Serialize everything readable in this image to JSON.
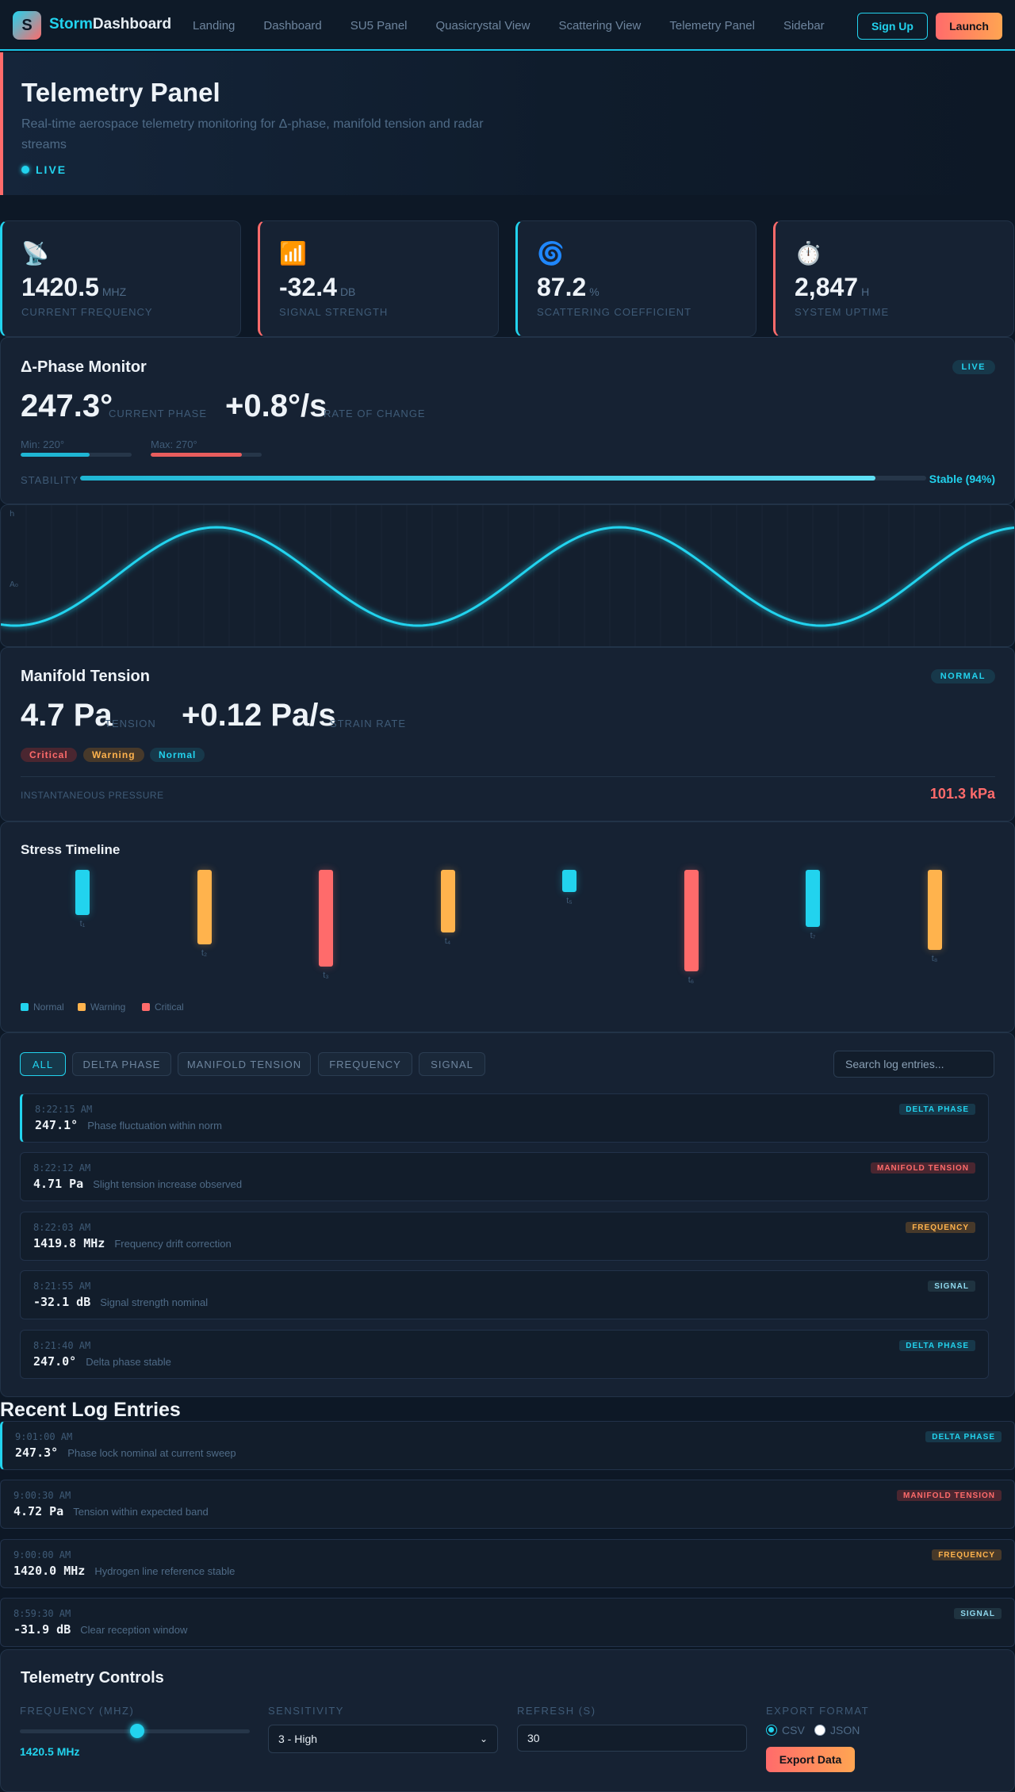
{
  "nav": {
    "logo_letter": "S",
    "brand_accent": "Storm",
    "brand_rest": "Dashboard",
    "links": [
      "Landing",
      "Dashboard",
      "SU5 Panel",
      "Quasicrystal View",
      "Scattering View",
      "Telemetry Panel",
      "Sidebar"
    ],
    "signup_label": "Sign Up",
    "launch_label": "Launch"
  },
  "hero": {
    "title": "Telemetry Panel",
    "subtitle": "Real-time aerospace telemetry monitoring for Δ-phase, manifold tension and radar streams",
    "status": "LIVE"
  },
  "stats": [
    {
      "emoji": "📡",
      "value": "1420.5",
      "unit": "MHZ",
      "label": "CURRENT FREQUENCY",
      "accent": "#22d3ee"
    },
    {
      "emoji": "📶",
      "value": "-32.4",
      "unit": "DB",
      "label": "SIGNAL STRENGTH",
      "accent": "#ff6b6b"
    },
    {
      "emoji": "🌀",
      "value": "87.2",
      "unit": "%",
      "label": "SCATTERING COEFFICIENT",
      "accent": "#22d3ee"
    },
    {
      "emoji": "⏱️",
      "value": "2,847",
      "unit": "H",
      "label": "SYSTEM UPTIME",
      "accent": "#ff6b6b"
    }
  ],
  "delta_phase": {
    "title": "Δ-Phase Monitor",
    "badge": "LIVE",
    "current_value": "247.3°",
    "current_label": "CURRENT PHASE",
    "rate_value": "+0.8°/s",
    "rate_label": "RATE OF CHANGE",
    "min_label": "Min: 220°",
    "min_fill": 0.62,
    "max_label": "Max: 270°",
    "max_fill": 0.82,
    "stability_label": "STABILITY",
    "stability_value": "Stable (94%)",
    "stability_fill": 0.94
  },
  "wave": {
    "top_label": "h",
    "mid_label": "A₀",
    "color": "#22d3ee"
  },
  "manifold": {
    "title": "Manifold Tension",
    "badge": "NORMAL",
    "tension_value": "4.7 Pa",
    "tension_label": "TENSION",
    "strain_value": "+0.12 Pa/s",
    "strain_label": "STRAIN RATE",
    "tags": [
      "Critical",
      "Warning",
      "Normal"
    ],
    "pressure_label": "INSTANTANEOUS PRESSURE",
    "pressure_value": "101.3 kPa"
  },
  "stress": {
    "title": "Stress Timeline",
    "bars": [
      {
        "label": "t₁",
        "level": 0.47,
        "status": "normal"
      },
      {
        "label": "t₂",
        "level": 0.77,
        "status": "warning"
      },
      {
        "label": "t₃",
        "level": 1.0,
        "status": "critical"
      },
      {
        "label": "t₄",
        "level": 0.65,
        "status": "warning"
      },
      {
        "label": "t₅",
        "level": 0.23,
        "status": "normal"
      },
      {
        "label": "t₆",
        "level": 1.05,
        "status": "critical"
      },
      {
        "label": "t₇",
        "level": 0.59,
        "status": "normal"
      },
      {
        "label": "t₈",
        "level": 0.83,
        "status": "warning"
      }
    ],
    "legend": [
      "Normal",
      "Warning",
      "Critical"
    ],
    "colors": {
      "normal": "#22d3ee",
      "warning": "#ffb34d",
      "critical": "#ff6b6b"
    }
  },
  "filters": {
    "items": [
      "ALL",
      "DELTA PHASE",
      "MANIFOLD TENSION",
      "FREQUENCY",
      "SIGNAL"
    ],
    "active": "ALL",
    "search_placeholder": "Search log entries..."
  },
  "log_entries": [
    {
      "time": "8:22:15 AM",
      "value": "247.1°",
      "message": "Phase fluctuation within norm",
      "tag": "DELTA PHASE"
    },
    {
      "time": "8:22:12 AM",
      "value": "4.71 Pa",
      "message": "Slight tension increase observed",
      "tag": "MANIFOLD TENSION"
    },
    {
      "time": "8:22:03 AM",
      "value": "1419.8 MHz",
      "message": "Frequency drift correction",
      "tag": "FREQUENCY"
    },
    {
      "time": "8:21:55 AM",
      "value": "-32.1 dB",
      "message": "Signal strength nominal",
      "tag": "SIGNAL"
    },
    {
      "time": "8:21:40 AM",
      "value": "247.0°",
      "message": "Delta phase stable",
      "tag": "DELTA PHASE"
    }
  ],
  "recent": {
    "title": "Recent Log Entries",
    "entries": [
      {
        "time": "9:01:00 AM",
        "value": "247.3°",
        "message": "Phase lock nominal at current sweep",
        "tag": "DELTA PHASE"
      },
      {
        "time": "9:00:30 AM",
        "value": "4.72 Pa",
        "message": "Tension within expected band",
        "tag": "MANIFOLD TENSION"
      },
      {
        "time": "9:00:00 AM",
        "value": "1420.0 MHz",
        "message": "Hydrogen line reference stable",
        "tag": "FREQUENCY"
      },
      {
        "time": "8:59:30 AM",
        "value": "-31.9 dB",
        "message": "Clear reception window",
        "tag": "SIGNAL"
      }
    ]
  },
  "controls": {
    "title": "Telemetry Controls",
    "frequency_label": "FREQUENCY (MHZ)",
    "frequency_value": "1420.5 MHz",
    "frequency_fraction": 0.51,
    "sensitivity_label": "SENSITIVITY",
    "sensitivity_value": "3 - High",
    "refresh_label": "REFRESH (S)",
    "refresh_value": "30",
    "export_label": "EXPORT FORMAT",
    "format_options": [
      "CSV",
      "JSON"
    ],
    "format_selected": "CSV",
    "export_button": "Export Data"
  }
}
